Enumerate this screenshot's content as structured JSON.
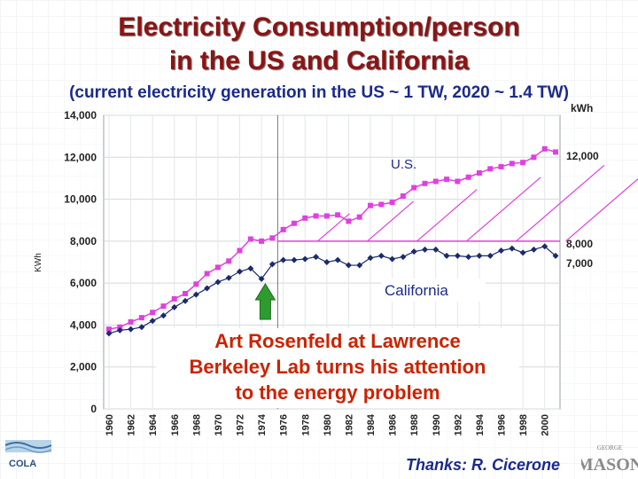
{
  "slide": {
    "title_line1": "Electricity Consumption/person",
    "title_line2": "in the US and California",
    "subtitle": "(current electricity generation in the US ~ 1 TW, 2020 ~ 1.4 TW)",
    "thanks": "Thanks: R. Cicerone",
    "logo_left_text": "COLA",
    "logo_right_text": "MASON",
    "logo_right_small": "GEORGE"
  },
  "chart_data": {
    "type": "line",
    "ylabel": "KWh",
    "ylim": [
      0,
      14000
    ],
    "yticks": [
      "0",
      "2,000",
      "4,000",
      "6,000",
      "8,000",
      "10,000",
      "12,000",
      "14,000"
    ],
    "ytick_values": [
      0,
      2000,
      4000,
      6000,
      8000,
      10000,
      12000,
      14000
    ],
    "x": [
      1960,
      1961,
      1962,
      1963,
      1964,
      1965,
      1966,
      1967,
      1968,
      1969,
      1970,
      1971,
      1972,
      1973,
      1974,
      1975,
      1976,
      1977,
      1978,
      1979,
      1980,
      1981,
      1982,
      1983,
      1984,
      1985,
      1986,
      1987,
      1988,
      1989,
      1990,
      1991,
      1992,
      1993,
      1994,
      1995,
      1996,
      1997,
      1998,
      1999,
      2000,
      2001
    ],
    "xticks": [
      "1960",
      "1962",
      "1964",
      "1966",
      "1968",
      "1970",
      "1972",
      "1974",
      "1976",
      "1978",
      "1980",
      "1982",
      "1984",
      "1986",
      "1988",
      "1990",
      "1992",
      "1994",
      "1996",
      "1998",
      "2000"
    ],
    "series": [
      {
        "name": "U.S.",
        "color": "#e040e0",
        "values": [
          3800,
          3900,
          4150,
          4350,
          4600,
          4900,
          5250,
          5500,
          5950,
          6450,
          6750,
          7050,
          7550,
          8100,
          8000,
          8150,
          8550,
          8850,
          9100,
          9200,
          9200,
          9250,
          8950,
          9150,
          9700,
          9750,
          9850,
          10150,
          10550,
          10750,
          10850,
          10950,
          10850,
          11050,
          11250,
          11450,
          11550,
          11700,
          11750,
          12000,
          12400,
          12250
        ]
      },
      {
        "name": "California",
        "color": "#1a2a6c",
        "values": [
          3600,
          3750,
          3800,
          3900,
          4200,
          4450,
          4850,
          5150,
          5450,
          5750,
          6050,
          6250,
          6550,
          6700,
          6200,
          6900,
          7100,
          7100,
          7150,
          7250,
          7000,
          7100,
          6850,
          6850,
          7200,
          7300,
          7150,
          7250,
          7500,
          7600,
          7600,
          7300,
          7300,
          7250,
          7300,
          7300,
          7550,
          7650,
          7450,
          7600,
          7750,
          7300
        ]
      }
    ],
    "series_labels": {
      "us": "U.S.",
      "ca": "California"
    },
    "right_labels": {
      "kwh_unit": "kWh",
      "us_end": "12,000",
      "level_8000": "8,000",
      "ca_end": "7,000"
    },
    "reference_line_value": 8000,
    "reference_line_start_year": 1975.5,
    "marker_year": 1975,
    "annotation_lines": [
      "Art Rosenfeld at Lawrence",
      "Berkeley Lab turns his attention",
      "to the energy problem"
    ],
    "annotation_color": "#cc2200",
    "grid": true,
    "legend": "inline labels"
  }
}
